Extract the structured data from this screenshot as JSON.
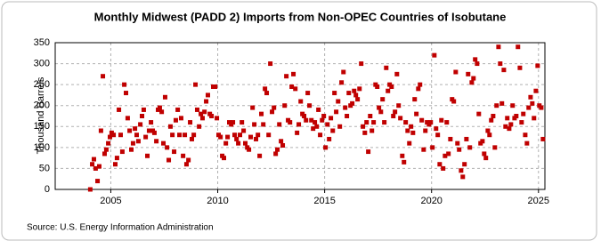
{
  "chart_data": {
    "type": "scatter",
    "title": "Monthly Midwest (PADD 2) Imports from Non-OPEC Countries of Isobutane",
    "y_label": "Thousand Barrels",
    "source": "Source: U.S. Energy Information Administration",
    "color": "#c00000",
    "grid": true,
    "xlim": [
      2002.4,
      2025.3
    ],
    "xticks": [
      2005,
      2010,
      2015,
      2020,
      2025
    ],
    "ylim": [
      0,
      350
    ],
    "yticks": [
      0,
      50,
      100,
      150,
      200,
      250,
      300,
      350
    ],
    "x": [
      2004.04,
      2004.13,
      2004.21,
      2004.29,
      2004.38,
      2004.46,
      2004.54,
      2004.63,
      2004.71,
      2004.79,
      2004.88,
      2004.96,
      2005.04,
      2005.13,
      2005.21,
      2005.29,
      2005.38,
      2005.46,
      2005.54,
      2005.63,
      2005.71,
      2005.79,
      2005.88,
      2005.96,
      2006.04,
      2006.13,
      2006.21,
      2006.29,
      2006.38,
      2006.46,
      2006.54,
      2006.63,
      2006.71,
      2006.79,
      2006.88,
      2006.96,
      2007.04,
      2007.13,
      2007.21,
      2007.29,
      2007.38,
      2007.46,
      2007.54,
      2007.63,
      2007.71,
      2007.79,
      2007.88,
      2007.96,
      2008.04,
      2008.13,
      2008.21,
      2008.29,
      2008.38,
      2008.46,
      2008.54,
      2008.63,
      2008.71,
      2008.79,
      2008.88,
      2008.96,
      2009.04,
      2009.13,
      2009.21,
      2009.29,
      2009.38,
      2009.46,
      2009.54,
      2009.63,
      2009.71,
      2009.79,
      2009.88,
      2009.96,
      2010.04,
      2010.13,
      2010.21,
      2010.29,
      2010.38,
      2010.46,
      2010.54,
      2010.63,
      2010.71,
      2010.79,
      2010.88,
      2010.96,
      2011.04,
      2011.13,
      2011.21,
      2011.29,
      2011.38,
      2011.46,
      2011.54,
      2011.63,
      2011.71,
      2011.79,
      2011.88,
      2011.96,
      2012.04,
      2012.13,
      2012.21,
      2012.29,
      2012.38,
      2012.46,
      2012.54,
      2012.63,
      2012.71,
      2012.79,
      2012.88,
      2012.96,
      2013.04,
      2013.13,
      2013.21,
      2013.29,
      2013.38,
      2013.46,
      2013.54,
      2013.63,
      2013.71,
      2013.79,
      2013.88,
      2013.96,
      2014.04,
      2014.13,
      2014.21,
      2014.29,
      2014.38,
      2014.46,
      2014.54,
      2014.63,
      2014.71,
      2014.79,
      2014.88,
      2014.96,
      2015.04,
      2015.13,
      2015.21,
      2015.29,
      2015.38,
      2015.46,
      2015.54,
      2015.63,
      2015.71,
      2015.79,
      2015.88,
      2015.96,
      2016.04,
      2016.13,
      2016.21,
      2016.29,
      2016.38,
      2016.46,
      2016.54,
      2016.63,
      2016.71,
      2016.79,
      2016.88,
      2016.96,
      2017.04,
      2017.13,
      2017.21,
      2017.29,
      2017.38,
      2017.46,
      2017.54,
      2017.63,
      2017.71,
      2017.79,
      2017.88,
      2017.96,
      2018.04,
      2018.13,
      2018.21,
      2018.29,
      2018.38,
      2018.46,
      2018.54,
      2018.63,
      2018.71,
      2018.79,
      2018.88,
      2018.96,
      2019.04,
      2019.13,
      2019.21,
      2019.29,
      2019.38,
      2019.46,
      2019.54,
      2019.63,
      2019.71,
      2019.79,
      2019.88,
      2019.96,
      2020.04,
      2020.13,
      2020.21,
      2020.29,
      2020.38,
      2020.46,
      2020.54,
      2020.63,
      2020.71,
      2020.79,
      2020.88,
      2020.96,
      2021.04,
      2021.13,
      2021.21,
      2021.29,
      2021.38,
      2021.46,
      2021.54,
      2021.63,
      2021.71,
      2021.79,
      2021.88,
      2021.96,
      2022.04,
      2022.13,
      2022.21,
      2022.29,
      2022.38,
      2022.46,
      2022.54,
      2022.63,
      2022.71,
      2022.79,
      2022.88,
      2022.96,
      2023.04,
      2023.13,
      2023.21,
      2023.29,
      2023.38,
      2023.46,
      2023.54,
      2023.63,
      2023.71,
      2023.79,
      2023.88,
      2023.96,
      2024.04,
      2024.13,
      2024.21,
      2024.29,
      2024.38,
      2024.46,
      2024.54,
      2024.63,
      2024.71,
      2024.79,
      2024.88,
      2024.96,
      2025.04,
      2025.13,
      2025.21
    ],
    "values": [
      0,
      60,
      72,
      50,
      20,
      55,
      140,
      270,
      85,
      95,
      110,
      125,
      135,
      130,
      60,
      75,
      190,
      130,
      90,
      250,
      230,
      170,
      140,
      95,
      110,
      145,
      130,
      115,
      155,
      175,
      190,
      125,
      80,
      140,
      160,
      140,
      135,
      115,
      190,
      195,
      185,
      110,
      220,
      100,
      70,
      150,
      130,
      90,
      165,
      190,
      130,
      170,
      80,
      130,
      60,
      70,
      160,
      120,
      130,
      250,
      190,
      150,
      180,
      170,
      185,
      210,
      225,
      180,
      175,
      245,
      245,
      170,
      130,
      125,
      80,
      75,
      110,
      125,
      160,
      155,
      160,
      130,
      120,
      110,
      130,
      160,
      140,
      110,
      100,
      95,
      125,
      195,
      155,
      120,
      130,
      80,
      180,
      155,
      240,
      230,
      130,
      300,
      185,
      195,
      85,
      95,
      155,
      115,
      105,
      200,
      270,
      165,
      160,
      245,
      275,
      240,
      135,
      155,
      210,
      180,
      175,
      165,
      230,
      200,
      165,
      145,
      160,
      150,
      190,
      130,
      165,
      175,
      100,
      155,
      120,
      170,
      140,
      230,
      185,
      210,
      150,
      255,
      280,
      195,
      175,
      230,
      200,
      205,
      235,
      225,
      215,
      240,
      300,
      150,
      135,
      160,
      90,
      175,
      140,
      160,
      250,
      245,
      195,
      185,
      215,
      160,
      290,
      235,
      250,
      245,
      175,
      185,
      275,
      200,
      170,
      80,
      65,
      160,
      140,
      110,
      150,
      135,
      215,
      180,
      240,
      250,
      165,
      95,
      140,
      160,
      155,
      160,
      100,
      320,
      145,
      130,
      60,
      165,
      50,
      80,
      160,
      85,
      120,
      215,
      210,
      280,
      110,
      95,
      45,
      30,
      60,
      120,
      275,
      100,
      255,
      265,
      310,
      300,
      180,
      110,
      115,
      85,
      75,
      140,
      130,
      165,
      175,
      100,
      200,
      340,
      300,
      205,
      285,
      150,
      170,
      145,
      155,
      200,
      170,
      175,
      340,
      290,
      160,
      180,
      130,
      110,
      195,
      220,
      205,
      170,
      235,
      295,
      200,
      195,
      120
    ]
  }
}
